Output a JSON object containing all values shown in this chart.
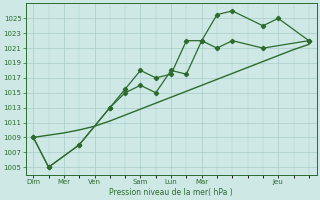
{
  "title": "",
  "xlabel": "Pression niveau de la mer( hPa )",
  "bg_color": "#cde8e5",
  "grid_color": "#a8ccc9",
  "line_color": "#2d6b2d",
  "ylim": [
    1004,
    1027
  ],
  "yticks": [
    1005,
    1007,
    1009,
    1011,
    1013,
    1015,
    1017,
    1019,
    1021,
    1023,
    1025
  ],
  "x": [
    0,
    1,
    2,
    3,
    4,
    5,
    6,
    7,
    8,
    9,
    10,
    11,
    12,
    13,
    14,
    15,
    16,
    17,
    18
  ],
  "line_trend": [
    1009,
    1009.3,
    1009.6,
    1010.0,
    1010.5,
    1011.2,
    1012.0,
    1012.8,
    1013.6,
    1014.4,
    1015.2,
    1016.0,
    1016.8,
    1017.6,
    1018.4,
    1019.2,
    1020.0,
    1020.8,
    1021.5
  ],
  "line_mid_x": [
    0,
    1,
    3,
    5,
    6,
    7,
    8,
    9,
    10,
    11,
    12,
    13,
    15,
    18
  ],
  "line_mid_y": [
    1009,
    1005,
    1008,
    1013,
    1015,
    1016,
    1015,
    1018,
    1017.5,
    1022,
    1021,
    1022,
    1021,
    1022
  ],
  "line_top_x": [
    0,
    1,
    3,
    5,
    6,
    7,
    8,
    9,
    10,
    11,
    12,
    13,
    15,
    16,
    18
  ],
  "line_top_y": [
    1009,
    1005,
    1008,
    1013,
    1015.5,
    1018,
    1017,
    1017.5,
    1022,
    1022,
    1025.5,
    1026,
    1024,
    1025,
    1022
  ],
  "major_xtick_pos": [
    0,
    2,
    4,
    7,
    9,
    11,
    16
  ],
  "major_xtick_labels": [
    "Dim",
    "Mer",
    "Ven",
    "Sam",
    "Lun",
    "Mar",
    "Jeu"
  ]
}
